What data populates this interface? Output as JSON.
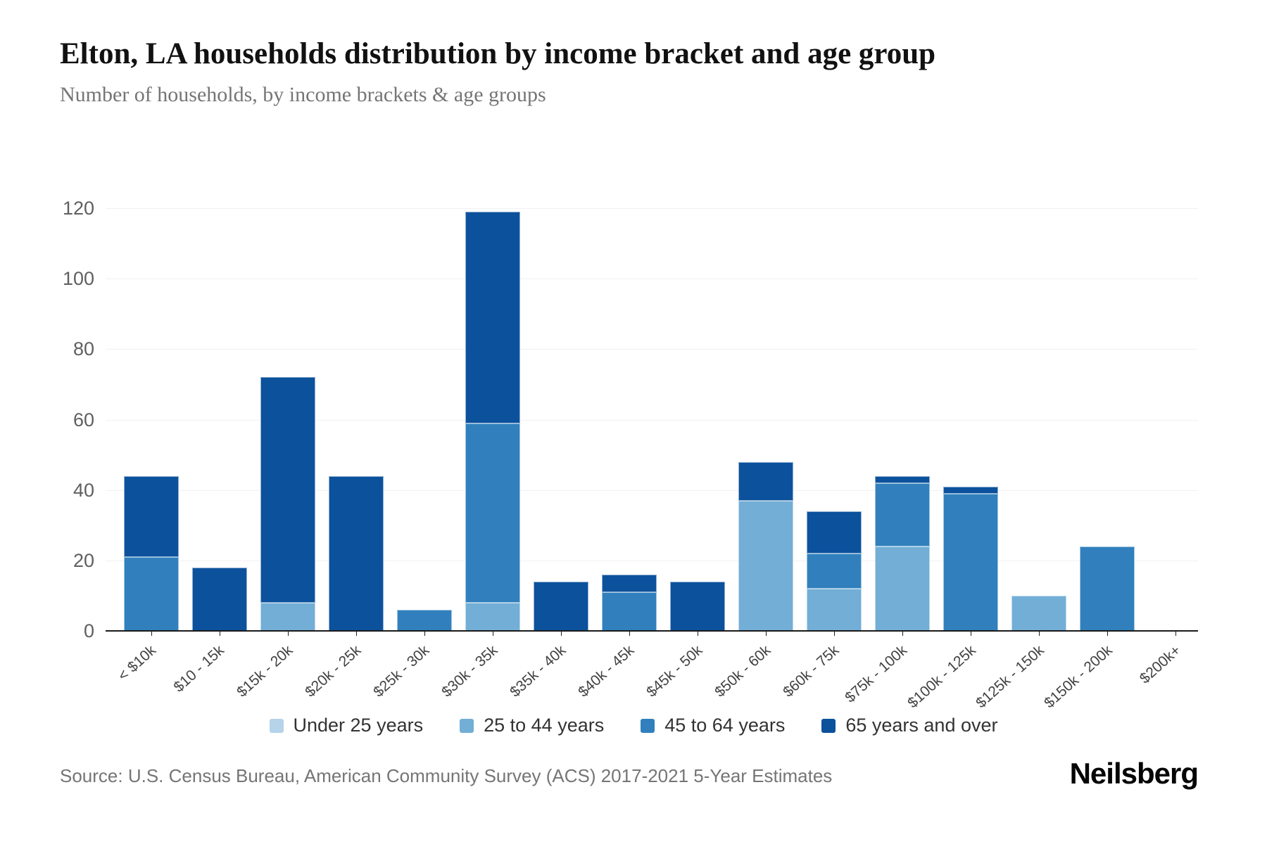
{
  "header": {
    "title": "Elton, LA households distribution by income bracket and age group",
    "subtitle": "Number of households, by income brackets & age groups"
  },
  "footer": {
    "source": "Source: U.S. Census Bureau, American Community Survey (ACS) 2017-2021 5-Year Estimates",
    "brand": "Neilsberg"
  },
  "chart_data": {
    "type": "bar",
    "stacked": true,
    "title": "Elton, LA households distribution by income bracket and age group",
    "xlabel": "",
    "ylabel": "Number of households",
    "ylim": [
      0,
      120
    ],
    "yticks": [
      0,
      20,
      40,
      60,
      80,
      100,
      120
    ],
    "grid": true,
    "legend_position": "bottom",
    "categories": [
      "< $10k",
      "$10 - 15k",
      "$15k - 20k",
      "$20k - 25k",
      "$25k - 30k",
      "$30k - 35k",
      "$35k - 40k",
      "$40k - 45k",
      "$45k - 50k",
      "$50k - 60k",
      "$60k - 75k",
      "$75k - 100k",
      "$100k - 125k",
      "$125k - 150k",
      "$150k - 200k",
      "$200k+"
    ],
    "series": [
      {
        "name": "Under 25 years",
        "color": "#b5d3e9",
        "values": [
          0,
          0,
          0,
          0,
          0,
          0,
          0,
          0,
          0,
          0,
          0,
          0,
          0,
          0,
          0,
          0
        ]
      },
      {
        "name": "25 to 44 years",
        "color": "#72aed6",
        "values": [
          0,
          0,
          8,
          0,
          0,
          8,
          0,
          0,
          0,
          37,
          12,
          24,
          0,
          10,
          0,
          0
        ]
      },
      {
        "name": "45 to 64 years",
        "color": "#3180bd",
        "values": [
          21,
          0,
          0,
          0,
          6,
          51,
          0,
          11,
          0,
          0,
          10,
          18,
          39,
          0,
          24,
          0
        ]
      },
      {
        "name": "65 years and over",
        "color": "#0c519c",
        "values": [
          23,
          18,
          64,
          44,
          0,
          60,
          14,
          5,
          14,
          11,
          12,
          2,
          2,
          0,
          0,
          0
        ]
      }
    ],
    "totals": [
      44,
      18,
      72,
      44,
      6,
      119,
      14,
      16,
      14,
      48,
      34,
      44,
      41,
      10,
      24,
      0
    ]
  }
}
